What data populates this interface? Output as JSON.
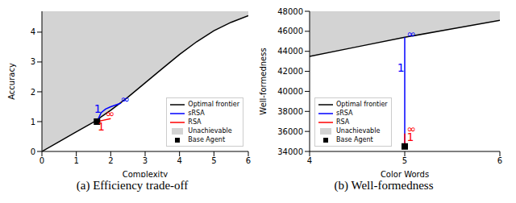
{
  "chart_data": [
    {
      "type": "line",
      "title": "(a) Efficiency trade-off",
      "x_label": "Complexity",
      "y_label": "Accuracy",
      "xlim": [
        0,
        6
      ],
      "ylim": [
        0,
        4.7
      ],
      "xticks": [
        0,
        1,
        2,
        3,
        4,
        5,
        6
      ],
      "yticks": [
        0,
        1,
        2,
        3,
        4
      ],
      "legend": "lower right",
      "series": [
        {
          "name": "Optimal frontier",
          "type": "line",
          "color": "#000000",
          "x": [
            0,
            0.5,
            1,
            1.5,
            2,
            2.5,
            3,
            3.5,
            4,
            4.5,
            5,
            5.5,
            6
          ],
          "values": [
            0,
            0.33,
            0.66,
            0.98,
            1.38,
            1.82,
            2.3,
            2.78,
            3.25,
            3.68,
            4.05,
            4.33,
            4.55
          ]
        },
        {
          "name": "sRSA",
          "type": "line",
          "color": "#0000ff",
          "x": [
            1.6,
            1.72,
            1.85,
            2.0,
            2.2,
            2.3
          ],
          "values": [
            1.0,
            1.3,
            1.42,
            1.5,
            1.58,
            1.62
          ]
        },
        {
          "name": "RSA",
          "type": "line",
          "color": "#ff0000",
          "x": [
            1.6,
            1.8,
            2.0
          ],
          "values": [
            1.0,
            1.05,
            1.1
          ]
        },
        {
          "name": "Unachievable",
          "type": "area",
          "color": "#d3d3d3",
          "x": [
            0,
            0.5,
            1,
            1.5,
            2,
            2.5,
            3,
            3.5,
            4,
            4.5,
            5,
            5.5,
            6
          ],
          "values": [
            0,
            0.33,
            0.66,
            0.98,
            1.38,
            1.82,
            2.3,
            2.78,
            3.25,
            3.68,
            4.05,
            4.33,
            4.55
          ]
        },
        {
          "name": "Base Agent",
          "type": "scatter",
          "marker": "square",
          "color": "#000000",
          "x": [
            1.6
          ],
          "values": [
            1.0
          ]
        }
      ],
      "annotations": [
        {
          "text": "1",
          "x": 1.62,
          "y": 1.4,
          "color": "#0000ff"
        },
        {
          "text": "∞",
          "x": 2.42,
          "y": 1.72,
          "color": "#0000ff"
        },
        {
          "text": "1",
          "x": 1.72,
          "y": 0.8,
          "color": "#ff0000"
        },
        {
          "text": "∞",
          "x": 1.98,
          "y": 1.25,
          "color": "#ff0000"
        }
      ]
    },
    {
      "type": "line",
      "title": "(b) Well-formedness",
      "x_label": "Color Words",
      "y_label": "Well-formedness",
      "xlim": [
        4,
        6
      ],
      "ylim": [
        34000,
        48000
      ],
      "xticks": [
        4,
        5,
        6
      ],
      "yticks": [
        34000,
        36000,
        38000,
        40000,
        42000,
        44000,
        46000,
        48000
      ],
      "legend": "lower left",
      "series": [
        {
          "name": "Optimal frontier",
          "type": "line",
          "color": "#000000",
          "x": [
            4,
            4.5,
            5,
            5.5,
            6
          ],
          "values": [
            43500,
            44450,
            45400,
            46250,
            47100
          ]
        },
        {
          "name": "sRSA",
          "type": "line",
          "color": "#0000ff",
          "x": [
            5,
            5,
            5
          ],
          "values": [
            34500,
            42300,
            45400
          ]
        },
        {
          "name": "RSA",
          "type": "line",
          "color": "#ff0000",
          "x": [
            5,
            5
          ],
          "values": [
            34500,
            35800
          ]
        },
        {
          "name": "Unachievable",
          "type": "area",
          "color": "#d3d3d3",
          "x": [
            4,
            4.5,
            5,
            5.5,
            6
          ],
          "values": [
            43500,
            44450,
            45400,
            46250,
            47100
          ]
        },
        {
          "name": "Base Agent",
          "type": "scatter",
          "marker": "square",
          "color": "#000000",
          "x": [
            5
          ],
          "values": [
            34500
          ]
        }
      ],
      "annotations": [
        {
          "text": "1",
          "x": 4.96,
          "y": 42300,
          "color": "#0000ff"
        },
        {
          "text": "∞",
          "x": 5.07,
          "y": 45700,
          "color": "#0000ff"
        },
        {
          "text": "1",
          "x": 5.06,
          "y": 35400,
          "color": "#ff0000"
        },
        {
          "text": "∞",
          "x": 5.07,
          "y": 36200,
          "color": "#ff0000"
        }
      ]
    }
  ]
}
